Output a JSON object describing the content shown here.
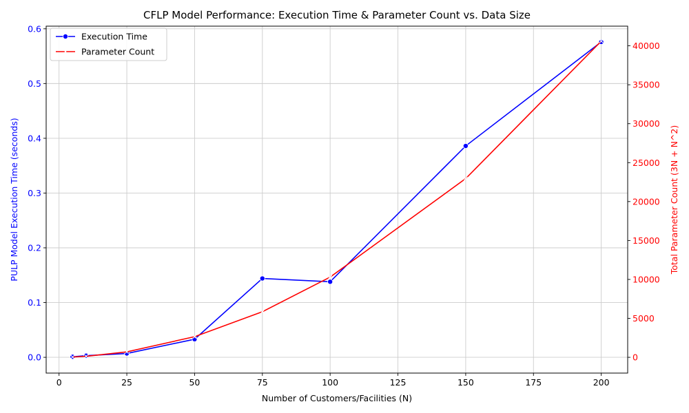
{
  "chart_data": {
    "type": "line",
    "title": "CFLP Model Performance: Execution Time & Parameter Count vs. Data Size",
    "xlabel": "Number of Customers/Facilities (N)",
    "ylabel_left": "PULP Model Execution Time (seconds)",
    "ylabel_right": "Total Parameter Count (3N + N^2)",
    "x": [
      5,
      10,
      25,
      50,
      75,
      100,
      150,
      200
    ],
    "xlim": [
      -4.75,
      209.75
    ],
    "ylim_left": [
      -0.0288,
      0.6048
    ],
    "ylim_right": [
      -2025,
      42525
    ],
    "xticks": [
      0,
      25,
      50,
      75,
      100,
      125,
      150,
      175,
      200
    ],
    "yticks_left": [
      0.0,
      0.1,
      0.2,
      0.3,
      0.4,
      0.5,
      0.6
    ],
    "yticks_right": [
      0,
      5000,
      10000,
      15000,
      20000,
      25000,
      30000,
      35000,
      40000
    ],
    "grid": true,
    "legend_position": "upper-left",
    "series": [
      {
        "name": "Execution Time",
        "axis": "left",
        "color": "#0000ff",
        "marker": "circle",
        "values": [
          0.001,
          0.003,
          0.007,
          0.033,
          0.144,
          0.138,
          0.386,
          0.576
        ]
      },
      {
        "name": "Parameter Count",
        "axis": "right",
        "color": "#ff0000",
        "marker": "x",
        "values": [
          40,
          130,
          700,
          2650,
          5850,
          10300,
          22950,
          40600
        ]
      }
    ]
  }
}
